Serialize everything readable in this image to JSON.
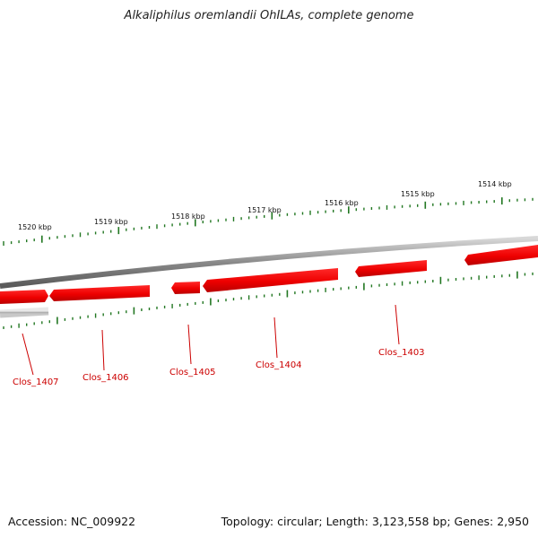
{
  "title": "Alkaliphilus oremlandii OhILAs, complete genome",
  "footer": {
    "accession": "Accession: NC_009922",
    "summary": "Topology: circular; Length: 3,123,558 bp; Genes: 2,950"
  },
  "scale_labels": [
    "1520 kbp",
    "1519 kbp",
    "1518 kbp",
    "1517 kbp",
    "1516 kbp",
    "1515 kbp",
    "1514 kbp"
  ],
  "gene_labels": [
    "Clos_1407",
    "Clos_1406",
    "Clos_1405",
    "Clos_1404",
    "Clos_1403"
  ],
  "colors": {
    "gene": "#ee0000",
    "gene_label": "#cc0000",
    "tick": "#227722",
    "backbone": "#8a8a8a"
  }
}
